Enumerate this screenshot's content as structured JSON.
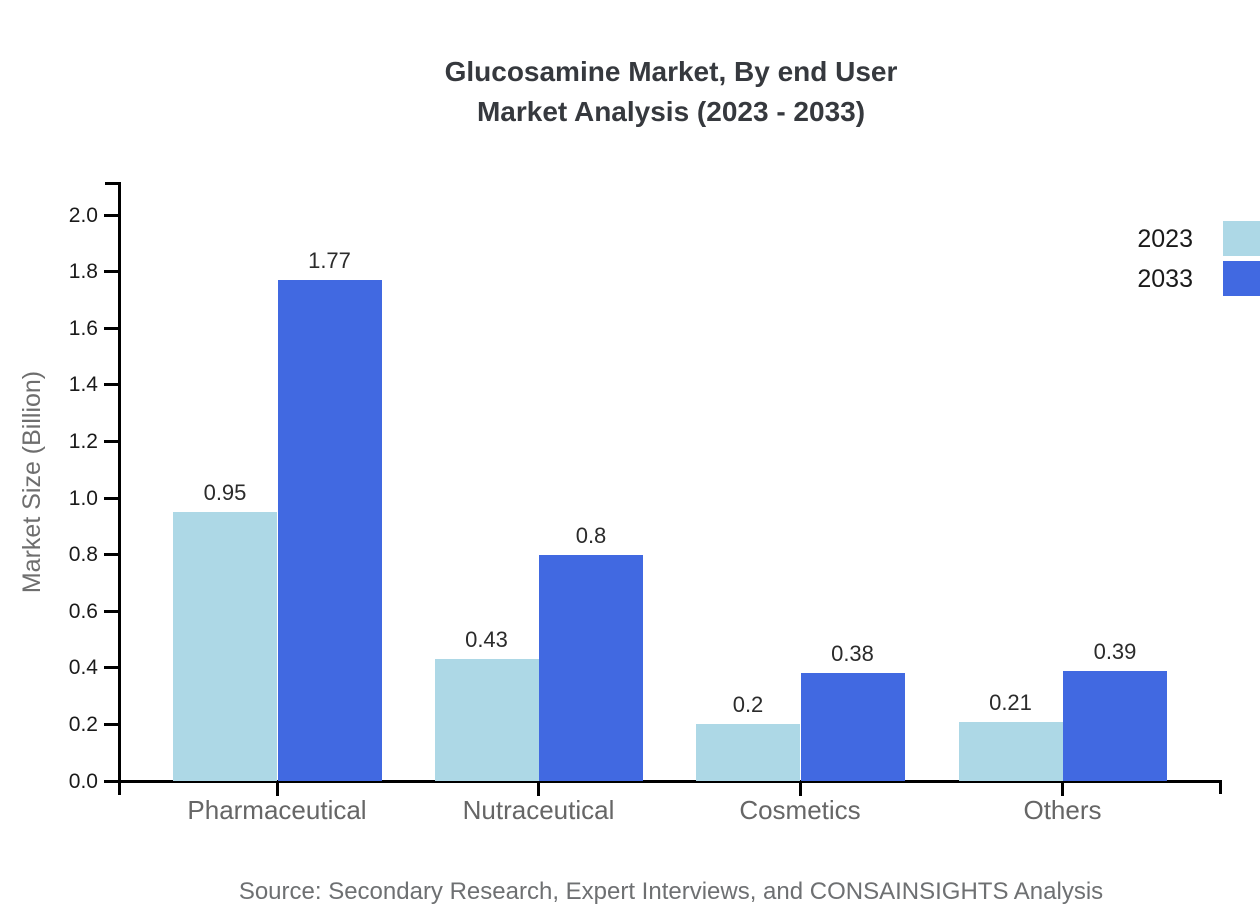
{
  "title": {
    "line1": "Glucosamine Market, By end User",
    "line2": "Market Analysis (2023 - 2033)"
  },
  "chart_data": {
    "type": "bar",
    "categories": [
      "Pharmaceutical",
      "Nutraceutical",
      "Cosmetics",
      "Others"
    ],
    "series": [
      {
        "name": "2023",
        "color": "#ADD8E6",
        "values": [
          0.95,
          0.43,
          0.2,
          0.21
        ],
        "labels": [
          "0.95",
          "0.43",
          "0.2",
          "0.21"
        ]
      },
      {
        "name": "2033",
        "color": "#4169E1",
        "values": [
          1.77,
          0.8,
          0.38,
          0.39
        ],
        "labels": [
          "1.77",
          "0.8",
          "0.38",
          "0.39"
        ]
      }
    ],
    "title": "Glucosamine Market, By end User Market Analysis (2023 - 2033)",
    "xlabel": "",
    "ylabel": "Market Size (Billion)",
    "yticks": [
      "0.0",
      "0.2",
      "0.4",
      "0.6",
      "0.8",
      "1.0",
      "1.2",
      "1.4",
      "1.6",
      "1.8",
      "2.0"
    ],
    "ylim": [
      0.0,
      2.0
    ],
    "grid": false,
    "legend_position": "top-right",
    "bar_value_labels": true
  },
  "legend": {
    "items": [
      {
        "label": "2023",
        "color": "#ADD8E6"
      },
      {
        "label": "2033",
        "color": "#4169E1"
      }
    ]
  },
  "source": "Source: Secondary Research, Expert Interviews, and CONSAINSIGHTS Analysis",
  "colors": {
    "series_2023": "#ADD8E6",
    "series_2033": "#4169E1",
    "axis": "#000000",
    "title_text": "#36393e",
    "tick_text": "#1a1a1a",
    "category_text": "#666666",
    "muted_text": "#6e6e6e"
  }
}
